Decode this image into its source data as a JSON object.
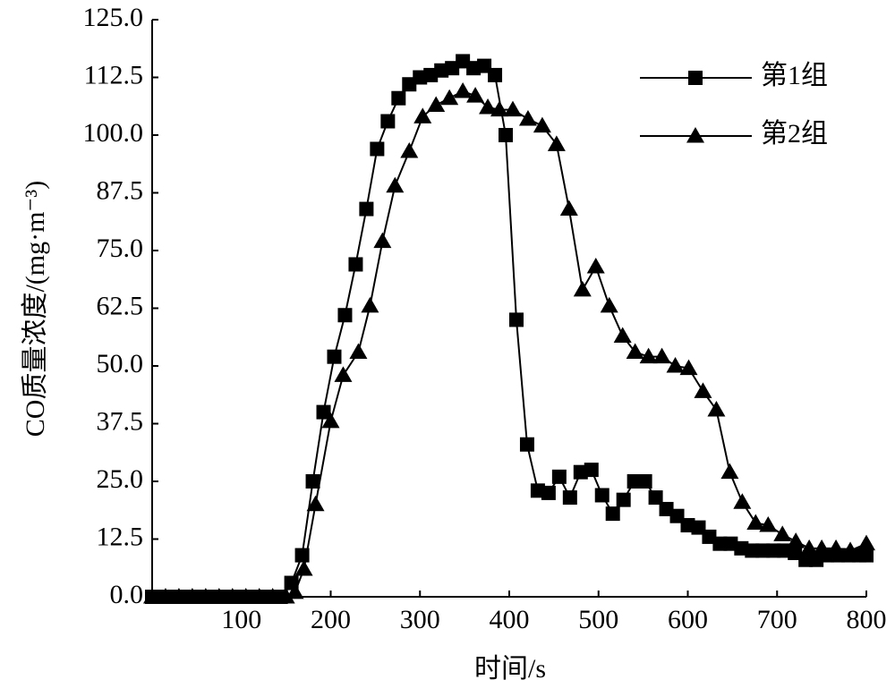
{
  "chart_data": {
    "type": "line",
    "xlabel": "时间/s",
    "ylabel": "CO质量浓度/(mg·m⁻³)",
    "xlim": [
      0,
      800
    ],
    "ylim": [
      0,
      125
    ],
    "xticks": [
      100,
      200,
      300,
      400,
      500,
      600,
      700,
      800
    ],
    "yticks": [
      {
        "value": 0,
        "label": "0.0"
      },
      12.5,
      {
        "value": 25,
        "label": "25.0"
      },
      37.5,
      {
        "value": 50,
        "label": "50.0"
      },
      62.5,
      {
        "value": 75,
        "label": "75.0"
      },
      87.5,
      {
        "value": 100,
        "label": "100.0"
      },
      112.5,
      {
        "value": 125,
        "label": "125.0"
      }
    ],
    "grid": false,
    "legend": "top-right",
    "series": [
      {
        "name": "第1组",
        "color": "#000000",
        "marker": "square",
        "x": [
          0,
          12,
          24,
          36,
          48,
          60,
          72,
          84,
          96,
          108,
          120,
          132,
          144,
          156,
          168,
          180,
          192,
          204,
          216,
          228,
          240,
          252,
          264,
          276,
          288,
          300,
          312,
          324,
          336,
          348,
          360,
          372,
          384,
          396,
          408,
          420,
          432,
          444,
          456,
          468,
          480,
          492,
          504,
          516,
          528,
          540,
          552,
          564,
          576,
          588,
          600,
          612,
          624,
          636,
          648,
          660,
          672,
          684,
          696,
          708,
          720,
          732,
          744,
          756,
          768,
          780,
          792,
          800
        ],
        "values": [
          0,
          0,
          0,
          0,
          0,
          0,
          0,
          0,
          0,
          0,
          0,
          0,
          0,
          3,
          9,
          25,
          40,
          52,
          61,
          72,
          84,
          97,
          103,
          108,
          111,
          112.5,
          113,
          114,
          114.5,
          116,
          114.5,
          115,
          113,
          100,
          60,
          33,
          23,
          22.5,
          26,
          21.5,
          27,
          27.5,
          22,
          18,
          21,
          25,
          25,
          21.5,
          19,
          17.5,
          15.5,
          15,
          13,
          11.5,
          11.5,
          10.5,
          10,
          10,
          10,
          10,
          9.5,
          8,
          8,
          9,
          9,
          9,
          9,
          9
        ]
      },
      {
        "name": "第2组",
        "color": "#000000",
        "marker": "triangle",
        "x": [
          0,
          15,
          30,
          45,
          60,
          75,
          90,
          105,
          120,
          135,
          150,
          160,
          170,
          183,
          200,
          214,
          231,
          244,
          258,
          272,
          288,
          303,
          318,
          333,
          348,
          362,
          376,
          389,
          404,
          421,
          437,
          453,
          467,
          482,
          497,
          512,
          527,
          541,
          556,
          571,
          586,
          601,
          617,
          632,
          647,
          661,
          676,
          690,
          706,
          721,
          736,
          750,
          766,
          782,
          800
        ],
        "values": [
          0,
          0,
          0,
          0,
          0,
          0,
          0,
          0,
          0,
          0,
          0,
          1,
          6,
          20,
          38,
          48,
          53,
          63,
          77,
          89,
          96.5,
          104,
          106.5,
          108,
          109.5,
          108.5,
          106,
          105.5,
          105.5,
          103.5,
          102,
          98,
          84,
          66.5,
          71.5,
          63,
          56.5,
          53,
          52,
          52,
          50,
          49.5,
          44.5,
          40.5,
          27,
          20.5,
          16,
          15.5,
          13.5,
          12,
          10.5,
          10.5,
          10.5,
          10,
          11.5
        ]
      }
    ]
  }
}
